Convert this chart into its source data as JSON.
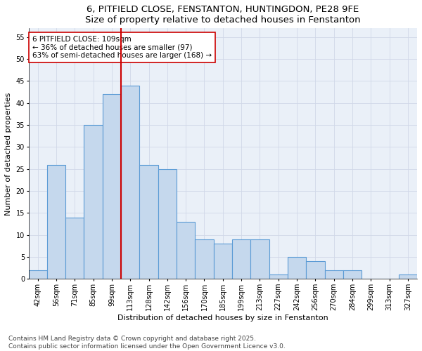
{
  "title_line1": "6, PITFIELD CLOSE, FENSTANTON, HUNTINGDON, PE28 9FE",
  "title_line2": "Size of property relative to detached houses in Fenstanton",
  "xlabel": "Distribution of detached houses by size in Fenstanton",
  "ylabel": "Number of detached properties",
  "categories": [
    "42sqm",
    "56sqm",
    "71sqm",
    "85sqm",
    "99sqm",
    "113sqm",
    "128sqm",
    "142sqm",
    "156sqm",
    "170sqm",
    "185sqm",
    "199sqm",
    "213sqm",
    "227sqm",
    "242sqm",
    "256sqm",
    "270sqm",
    "284sqm",
    "299sqm",
    "313sqm",
    "327sqm"
  ],
  "values": [
    2,
    26,
    14,
    35,
    42,
    44,
    26,
    25,
    13,
    9,
    8,
    9,
    9,
    1,
    5,
    4,
    2,
    2,
    0,
    0,
    1
  ],
  "bar_color": "#c5d8ed",
  "bar_edge_color": "#5b9bd5",
  "vline_color": "#cc0000",
  "annotation_text_line1": "6 PITFIELD CLOSE: 109sqm",
  "annotation_text_line2": "← 36% of detached houses are smaller (97)",
  "annotation_text_line3": "63% of semi-detached houses are larger (168) →",
  "annotation_box_color": "#ffffff",
  "annotation_box_edge": "#cc0000",
  "ylim": [
    0,
    57
  ],
  "yticks": [
    0,
    5,
    10,
    15,
    20,
    25,
    30,
    35,
    40,
    45,
    50,
    55
  ],
  "grid_color": "#d0d8e8",
  "background_color": "#eaf0f8",
  "footer_line1": "Contains HM Land Registry data © Crown copyright and database right 2025.",
  "footer_line2": "Contains public sector information licensed under the Open Government Licence v3.0.",
  "title_fontsize": 9.5,
  "axis_label_fontsize": 8,
  "tick_fontsize": 7,
  "annotation_fontsize": 7.5,
  "footer_fontsize": 6.5
}
